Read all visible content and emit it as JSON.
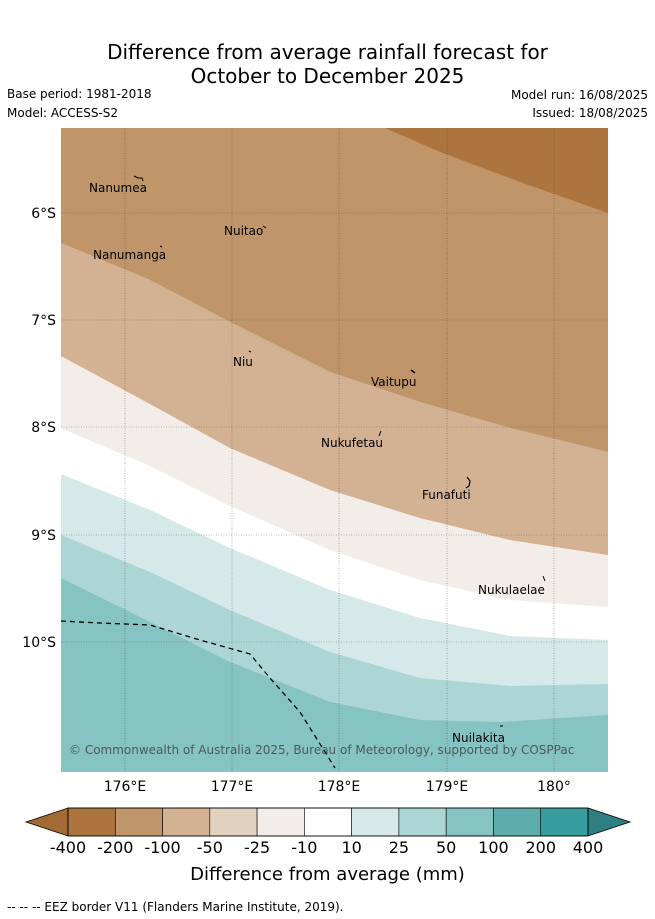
{
  "header": {
    "title_line1": "Difference from average rainfall forecast for",
    "title_line2": "October to December 2025",
    "base_period": "Base period: 1981-2018",
    "model": "Model: ACCESS-S2",
    "model_run": "Model run: 16/08/2025",
    "issued": "Issued: 18/08/2025"
  },
  "map": {
    "lat_labels": [
      "6°S",
      "7°S",
      "8°S",
      "9°S",
      "10°S"
    ],
    "lon_labels": [
      "176°E",
      "177°E",
      "178°E",
      "179°E",
      "180°"
    ],
    "islands": [
      "Nanumea",
      "Nuitao",
      "Nanumanga",
      "Niu",
      "Vaitupu",
      "Nukufetau",
      "Funafuti",
      "Nukulaelae",
      "Nuilakita"
    ],
    "copyright": "© Commonwealth of Australia 2025, Bureau of Meteorology, supported by COSPPac",
    "bands": [
      {
        "range": "-200 to -100",
        "color": "#ac7540"
      },
      {
        "range": "-100 to -50",
        "color": "#c1956a"
      },
      {
        "range": "-50 to -25",
        "color": "#d2b292"
      },
      {
        "range": "-25 to -10",
        "color": "#e3d1c0"
      },
      {
        "range": "-10 to 10",
        "color": "#f2ede8"
      },
      {
        "range": "10 to 25",
        "color": "#ffffff"
      },
      {
        "range": "25 to 50",
        "color": "#d5e9e8"
      },
      {
        "range": "50 to 100",
        "color": "#acd6d6"
      },
      {
        "range": "100 to 200",
        "color": "#86c3c3"
      }
    ]
  },
  "colorbar": {
    "ticks": [
      "-400",
      "-200",
      "-100",
      "-50",
      "-25",
      "-10",
      "10",
      "25",
      "50",
      "100",
      "200",
      "400"
    ],
    "colors": [
      "#ac7540",
      "#c1956a",
      "#d2b292",
      "#e3d1c0",
      "#f2ede8",
      "#ffffff",
      "#d5e9e8",
      "#acd6d6",
      "#86c3c3",
      "#5eadad",
      "#379d9d"
    ],
    "under_color": "#a36a33",
    "over_color": "#2f7f82",
    "title": "Difference from average (mm)"
  },
  "footer": {
    "legend": "-- -- -- EEZ border V11 (Flanders Marine Institute, 2019)."
  }
}
